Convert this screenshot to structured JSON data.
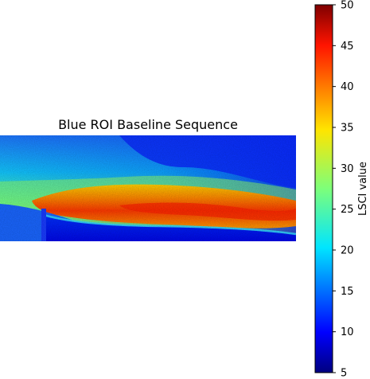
{
  "chart_data": {
    "type": "heatmap",
    "title": "Blue ROI Baseline Sequence",
    "xlabel": "",
    "ylabel": "",
    "axes_visible": false,
    "colormap": "jet",
    "colorbar": {
      "label": "LSCI value",
      "range": [
        5,
        50
      ],
      "ticks": [
        "5",
        "10",
        "15",
        "20",
        "25",
        "30",
        "35",
        "40",
        "45",
        "50"
      ],
      "position": "right"
    },
    "image_description_values": {
      "background_bottom_left": 10,
      "upper_region_left": 27,
      "upper_region_right": 12,
      "core_band_peak": 42,
      "lower_region": 8
    }
  }
}
